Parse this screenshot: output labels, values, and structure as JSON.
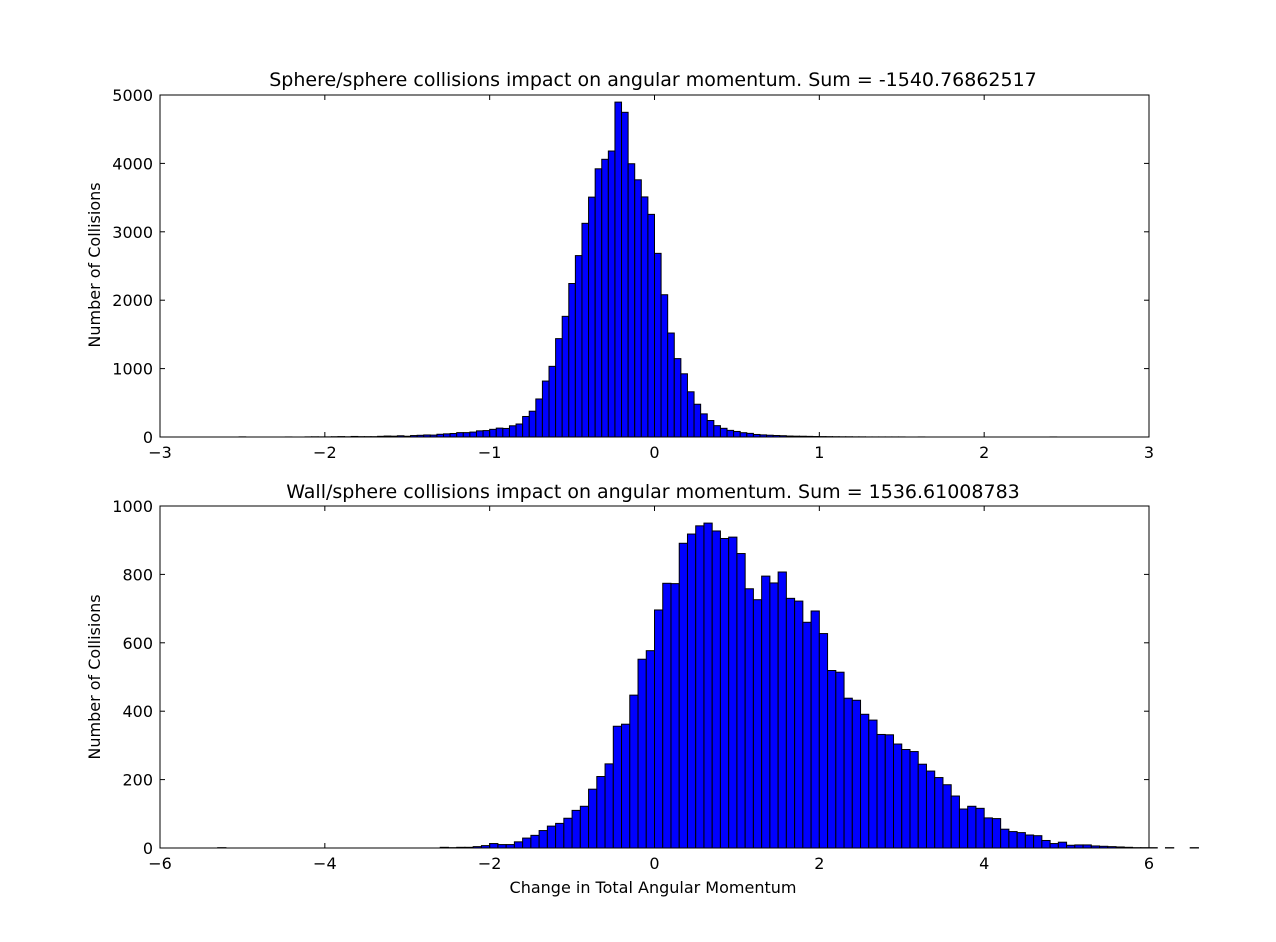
{
  "chart_data": [
    {
      "type": "bar",
      "title": "Sphere/sphere collisions impact on angular momentum. Sum = -1540.76862517",
      "xlabel": "",
      "ylabel": "Number of Collisions",
      "xlim": [
        -3,
        3
      ],
      "ylim": [
        0,
        5000
      ],
      "xticks": [
        "−3",
        "−2",
        "−1",
        "0",
        "1",
        "2",
        "3"
      ],
      "yticks": [
        "0",
        "1000",
        "2000",
        "3000",
        "4000",
        "5000"
      ],
      "grid": false,
      "bar_color": "#0000ff",
      "edge_color": "#000000",
      "bin_edges_start": -2.52,
      "bin_width": 0.04,
      "values": [
        2,
        0,
        0,
        0,
        0,
        0,
        0,
        1,
        0,
        0,
        2,
        3,
        2,
        2,
        4,
        6,
        3,
        8,
        5,
        5,
        5,
        10,
        14,
        12,
        18,
        11,
        21,
        25,
        30,
        28,
        40,
        46,
        51,
        64,
        64,
        72,
        90,
        94,
        112,
        130,
        125,
        164,
        190,
        300,
        377,
        556,
        818,
        1033,
        1438,
        1764,
        2244,
        2652,
        3124,
        3507,
        3921,
        4060,
        4181,
        4896,
        4747,
        3995,
        3760,
        3510,
        3255,
        2685,
        2080,
        1520,
        1146,
        924,
        661,
        479,
        338,
        241,
        166,
        127,
        97,
        81,
        63,
        53,
        37,
        31,
        26,
        22,
        19,
        14,
        12,
        11,
        9,
        7,
        6,
        5,
        4,
        3,
        3,
        2,
        2,
        1,
        1,
        1,
        1,
        1,
        1,
        0,
        0,
        1,
        0,
        0,
        0,
        0,
        0,
        0,
        0,
        0,
        0,
        0,
        0,
        0,
        0,
        0,
        0,
        0,
        0,
        0,
        0,
        1
      ]
    },
    {
      "type": "bar",
      "title": "Wall/sphere collisions impact on angular momentum. Sum = 1536.61008783",
      "xlabel": "Change in Total Angular Momentum",
      "ylabel": "Number of Collisions",
      "xlim": [
        -6,
        6
      ],
      "ylim": [
        0,
        1000
      ],
      "xticks": [
        "−6",
        "−4",
        "−2",
        "0",
        "2",
        "4",
        "6"
      ],
      "yticks": [
        "0",
        "200",
        "400",
        "600",
        "800",
        "1000"
      ],
      "grid": false,
      "bar_color": "#0000ff",
      "edge_color": "#000000",
      "bin_edges_start": -5.3,
      "bin_width": 0.1,
      "values": [
        1,
        0,
        0,
        0,
        0,
        0,
        0,
        0,
        0,
        0,
        0,
        0,
        0,
        0,
        0,
        0,
        0,
        0,
        0,
        0,
        0,
        0,
        0,
        0,
        0,
        0,
        0,
        2,
        1,
        2,
        2,
        4,
        7,
        13,
        10,
        10,
        18,
        29,
        37,
        51,
        64,
        72,
        87,
        110,
        122,
        172,
        209,
        246,
        356,
        362,
        447,
        552,
        577,
        696,
        774,
        773,
        891,
        918,
        942,
        950,
        927,
        905,
        909,
        861,
        758,
        726,
        795,
        775,
        807,
        730,
        722,
        660,
        693,
        627,
        519,
        514,
        438,
        432,
        391,
        374,
        332,
        331,
        304,
        288,
        282,
        245,
        225,
        206,
        185,
        152,
        114,
        122,
        116,
        88,
        86,
        55,
        48,
        45,
        38,
        36,
        22,
        13,
        17,
        8,
        9,
        9,
        6,
        5,
        4,
        3,
        2,
        1,
        1,
        1,
        0,
        1,
        0,
        0,
        1
      ]
    }
  ]
}
